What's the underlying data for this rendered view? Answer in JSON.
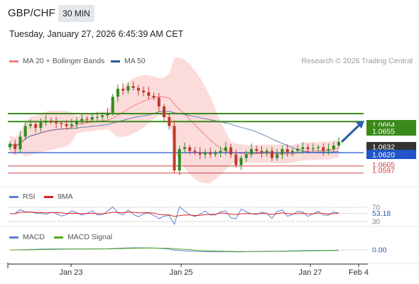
{
  "header": {
    "pair": "GBP/CHF",
    "timeframe": "30 MIN",
    "datetime": "Tuesday, January 27, 2026 6:45:39 AM CET",
    "credit": "Research © 2026 Trading Central"
  },
  "legends": {
    "main": [
      {
        "label": "MA 20 + Bollinger Bands",
        "color": "#f08080"
      },
      {
        "label": "MA 50",
        "color": "#2b5797"
      }
    ],
    "rsi": [
      {
        "label": "RSI",
        "color": "#5b7fd4"
      },
      {
        "label": "9MA",
        "color": "#e02020"
      }
    ],
    "macd": [
      {
        "label": "MACD",
        "color": "#5b7fd4"
      },
      {
        "label": "MACD Signal",
        "color": "#55aa22"
      }
    ]
  },
  "colors": {
    "up_candle": "#2e8b1f",
    "down_candle": "#c0392b",
    "support": "#2255cc",
    "resistance": "#3a8a1a",
    "pivot_red": "#d04040",
    "bollinger_fill": "#fbd5d5",
    "arrow": "#2b5da8"
  },
  "chart_data": [
    {
      "type": "candlestick",
      "instrument": "GBP/CHF",
      "timeframe": "30 MIN",
      "x_tick_labels": [
        "Jan 23",
        "Jan 25",
        "Jan 27",
        "Feb 4"
      ],
      "levels": [
        {
          "value": 1.0664,
          "label": "1.0664",
          "kind": "resistance"
        },
        {
          "value": 1.0655,
          "label": "1.0655",
          "kind": "resistance"
        },
        {
          "value": 1.0632,
          "label": "1.0632",
          "kind": "last-price"
        },
        {
          "value": 1.062,
          "label": "1.0620",
          "kind": "support"
        },
        {
          "value": 1.0605,
          "label": "1.0605",
          "kind": "support"
        },
        {
          "value": 1.0597,
          "label": "1.0597",
          "kind": "support"
        }
      ],
      "ylim": [
        1.058,
        1.072
      ],
      "closes": [
        1.063,
        1.0624,
        1.0638,
        1.065,
        1.0652,
        1.0648,
        1.0654,
        1.0656,
        1.0655,
        1.0653,
        1.0652,
        1.065,
        1.0652,
        1.0656,
        1.0658,
        1.0657,
        1.066,
        1.066,
        1.0662,
        1.0665,
        1.0683,
        1.0692,
        1.069,
        1.0695,
        1.0693,
        1.069,
        1.0688,
        1.0684,
        1.0682,
        1.0672,
        1.066,
        1.065,
        1.06,
        1.0624,
        1.0626,
        1.0622,
        1.062,
        1.0618,
        1.062,
        1.0618,
        1.062,
        1.0622,
        1.0626,
        1.0618,
        1.0606,
        1.0614,
        1.0618,
        1.0624,
        1.0622,
        1.062,
        1.0622,
        1.0614,
        1.0618,
        1.0624,
        1.062,
        1.0622,
        1.0624,
        1.0626,
        1.0624,
        1.0625,
        1.0626,
        1.0622,
        1.0624,
        1.0628,
        1.0632
      ],
      "projection": {
        "from": 1.0632,
        "to": 1.0656,
        "direction": "up"
      }
    },
    {
      "type": "line",
      "name": "RSI",
      "series": [
        {
          "name": "RSI"
        },
        {
          "name": "9MA"
        }
      ],
      "levels": [
        70,
        30
      ],
      "last_value": 53.18,
      "last_label": "53.18"
    },
    {
      "type": "line",
      "name": "MACD",
      "series": [
        {
          "name": "MACD"
        },
        {
          "name": "MACD Signal"
        }
      ],
      "zero_label": "0.00"
    }
  ]
}
